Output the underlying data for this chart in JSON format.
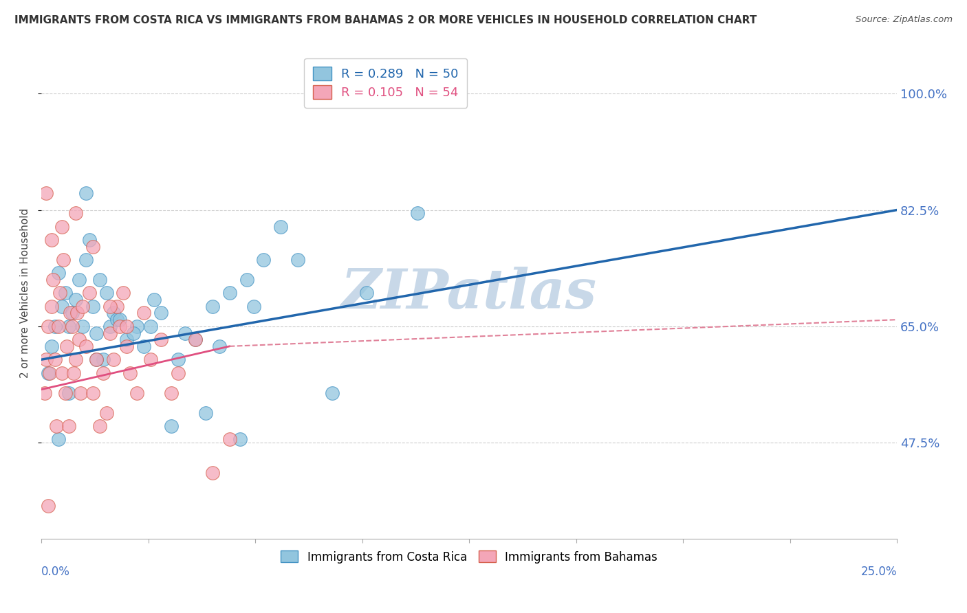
{
  "title": "IMMIGRANTS FROM COSTA RICA VS IMMIGRANTS FROM BAHAMAS 2 OR MORE VEHICLES IN HOUSEHOLD CORRELATION CHART",
  "source": "Source: ZipAtlas.com",
  "ylabel": "2 or more Vehicles in Household",
  "ytick_values": [
    47.5,
    65.0,
    82.5,
    100.0
  ],
  "xmin": 0.0,
  "xmax": 25.0,
  "ymin": 33.0,
  "ymax": 107.0,
  "legend_blue_R": "R = 0.289",
  "legend_blue_N": "N = 50",
  "legend_pink_R": "R = 0.105",
  "legend_pink_N": "N = 54",
  "label_blue": "Immigrants from Costa Rica",
  "label_pink": "Immigrants from Bahamas",
  "color_blue": "#92c5de",
  "color_pink": "#f4a6b8",
  "color_blue_edge": "#4393c3",
  "color_pink_edge": "#d6604d",
  "trendline_blue_color": "#2166ac",
  "trendline_pink_solid_color": "#e05080",
  "trendline_pink_dash_color": "#e08098",
  "blue_scatter_x": [
    0.2,
    0.3,
    0.4,
    0.5,
    0.6,
    0.7,
    0.8,
    0.9,
    1.0,
    1.1,
    1.2,
    1.3,
    1.4,
    1.5,
    1.6,
    1.7,
    1.8,
    1.9,
    2.0,
    2.1,
    2.2,
    2.5,
    2.8,
    3.0,
    3.5,
    4.0,
    4.5,
    5.0,
    5.5,
    6.0,
    6.5,
    7.0,
    3.2,
    3.8,
    4.2,
    5.2,
    6.2,
    7.5,
    8.5,
    9.5,
    11.0,
    1.3,
    1.6,
    2.3,
    2.7,
    3.3,
    4.8,
    0.5,
    0.8,
    5.8
  ],
  "blue_scatter_y": [
    58,
    62,
    65,
    73,
    68,
    70,
    65,
    67,
    69,
    72,
    65,
    75,
    78,
    68,
    64,
    72,
    60,
    70,
    65,
    67,
    66,
    63,
    65,
    62,
    67,
    60,
    63,
    68,
    70,
    72,
    75,
    80,
    65,
    50,
    64,
    62,
    68,
    75,
    55,
    70,
    82,
    85,
    60,
    66,
    64,
    69,
    52,
    48,
    55,
    48
  ],
  "pink_scatter_x": [
    0.1,
    0.15,
    0.2,
    0.25,
    0.3,
    0.35,
    0.4,
    0.45,
    0.5,
    0.55,
    0.6,
    0.65,
    0.7,
    0.75,
    0.8,
    0.85,
    0.9,
    0.95,
    1.0,
    1.05,
    1.1,
    1.15,
    1.2,
    1.3,
    1.4,
    1.5,
    1.6,
    1.7,
    1.8,
    1.9,
    2.0,
    2.1,
    2.2,
    2.3,
    2.4,
    2.5,
    2.6,
    2.8,
    3.0,
    3.2,
    3.5,
    3.8,
    4.0,
    4.5,
    5.0,
    5.5,
    0.3,
    0.6,
    1.0,
    1.5,
    2.0,
    2.5,
    0.2,
    0.15
  ],
  "pink_scatter_y": [
    55,
    60,
    65,
    58,
    68,
    72,
    60,
    50,
    65,
    70,
    58,
    75,
    55,
    62,
    50,
    67,
    65,
    58,
    60,
    67,
    63,
    55,
    68,
    62,
    70,
    55,
    60,
    50,
    58,
    52,
    64,
    60,
    68,
    65,
    70,
    62,
    58,
    55,
    67,
    60,
    63,
    55,
    58,
    63,
    43,
    48,
    78,
    80,
    82,
    77,
    68,
    65,
    38,
    85
  ],
  "watermark": "ZIPatlas",
  "watermark_color": "#c8d8e8",
  "blue_trendline_x0": 0.0,
  "blue_trendline_x1": 25.0,
  "blue_trendline_y0": 60.0,
  "blue_trendline_y1": 82.5,
  "pink_trendline_x0": 0.0,
  "pink_trendline_x1_solid": 5.5,
  "pink_trendline_x1_dash": 25.0,
  "pink_trendline_y0": 55.5,
  "pink_trendline_y1_solid": 62.0,
  "pink_trendline_y1_dash": 66.0
}
